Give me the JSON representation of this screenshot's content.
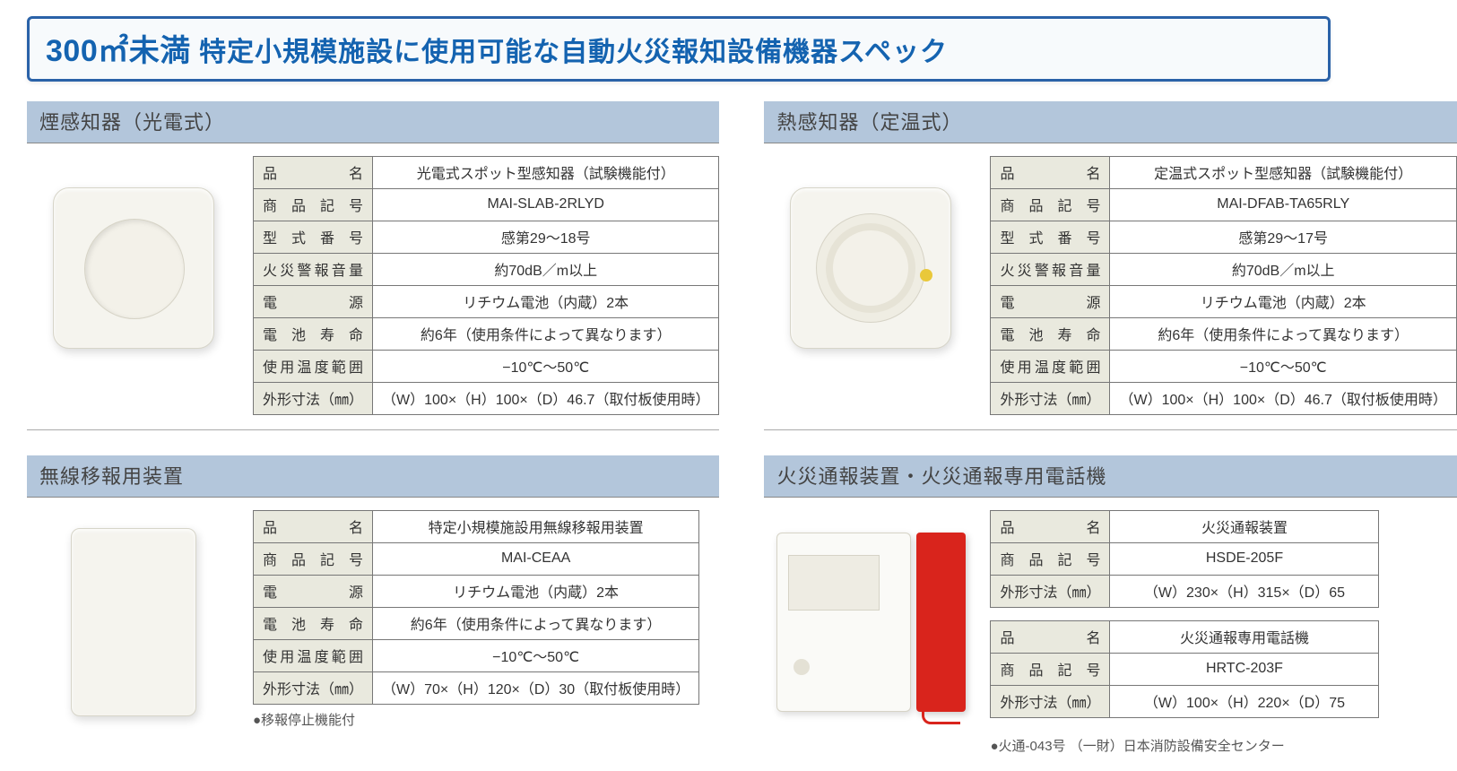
{
  "title": {
    "num": "300㎡未満",
    "rest": " 特定小規模施設に使用可能な自動火災報知設備機器スペック"
  },
  "colors": {
    "accent": "#1463b0",
    "border": "#2a62a8",
    "subhead_bg": "#b3c6db",
    "label_bg": "#e9e9de",
    "table_border": "#777777"
  },
  "panels": {
    "smoke": {
      "heading": "煙感知器（光電式）",
      "rows": [
        {
          "label": "品　　　名",
          "value": "光電式スポット型感知器（試験機能付）"
        },
        {
          "label": "商 品 記 号",
          "value": "MAI-SLAB-2RLYD"
        },
        {
          "label": "型 式 番 号",
          "value": "感第29～18号"
        },
        {
          "label": "火災警報音量",
          "value": "約70dB／m以上"
        },
        {
          "label": "電　　　源",
          "value": "リチウム電池（内蔵）2本"
        },
        {
          "label": "電 池 寿 命",
          "value": "約6年（使用条件によって異なります）"
        },
        {
          "label": "使用温度範囲",
          "value": "−10℃～50℃"
        },
        {
          "label": "外形寸法（㎜）",
          "value": "（W）100×（H）100×（D）46.7（取付板使用時）"
        }
      ]
    },
    "heat": {
      "heading": "熱感知器（定温式）",
      "rows": [
        {
          "label": "品　　　名",
          "value": "定温式スポット型感知器（試験機能付）"
        },
        {
          "label": "商 品 記 号",
          "value": "MAI-DFAB-TA65RLY"
        },
        {
          "label": "型 式 番 号",
          "value": "感第29～17号"
        },
        {
          "label": "火災警報音量",
          "value": "約70dB／m以上"
        },
        {
          "label": "電　　　源",
          "value": "リチウム電池（内蔵）2本"
        },
        {
          "label": "電 池 寿 命",
          "value": "約6年（使用条件によって異なります）"
        },
        {
          "label": "使用温度範囲",
          "value": "−10℃～50℃"
        },
        {
          "label": "外形寸法（㎜）",
          "value": "（W）100×（H）100×（D）46.7（取付板使用時）"
        }
      ]
    },
    "relay": {
      "heading": "無線移報用装置",
      "rows": [
        {
          "label": "品　　　名",
          "value": "特定小規模施設用無線移報用装置"
        },
        {
          "label": "商 品 記 号",
          "value": "MAI-CEAA"
        },
        {
          "label": "電　　　源",
          "value": "リチウム電池（内蔵）2本"
        },
        {
          "label": "電 池 寿 命",
          "value": "約6年（使用条件によって異なります）"
        },
        {
          "label": "使用温度範囲",
          "value": "−10℃～50℃"
        },
        {
          "label": "外形寸法（㎜）",
          "value": "（W）70×（H）120×（D）30（取付板使用時）"
        }
      ],
      "note": "●移報停止機能付"
    },
    "alarm": {
      "heading": "火災通報装置・火災通報専用電話機",
      "table1": [
        {
          "label": "品　　　名",
          "value": "火災通報装置"
        },
        {
          "label": "商 品 記 号",
          "value": "HSDE-205F"
        },
        {
          "label": "外形寸法（㎜）",
          "value": "（W）230×（H）315×（D）65"
        }
      ],
      "table2": [
        {
          "label": "品　　　名",
          "value": "火災通報専用電話機"
        },
        {
          "label": "商 品 記 号",
          "value": "HRTC-203F"
        },
        {
          "label": "外形寸法（㎜）",
          "value": "（W）100×（H）220×（D）75"
        }
      ],
      "note": "●火通-043号 （一財）日本消防設備安全センター"
    }
  }
}
